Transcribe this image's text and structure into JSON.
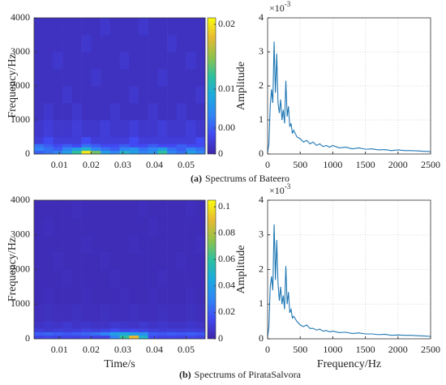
{
  "chart_data": [
    {
      "type": "heatmap",
      "caption_tag": "(a)",
      "caption": "Spectrums of Bateero",
      "ylabel": "Frequency/Hz",
      "xlim": [
        0.002,
        0.056
      ],
      "xticks": [
        0.01,
        0.02,
        0.03,
        0.04,
        0.05
      ],
      "ylim": [
        0,
        4000
      ],
      "yticks": [
        0,
        1000,
        2000,
        3000,
        4000
      ],
      "x_bins": [
        0.002,
        0.005,
        0.008,
        0.011,
        0.014,
        0.017,
        0.02,
        0.023,
        0.026,
        0.029,
        0.032,
        0.035,
        0.038,
        0.041,
        0.044,
        0.047,
        0.05,
        0.053,
        0.056
      ],
      "y_bins": [
        0,
        100,
        200,
        300,
        500,
        1000,
        1500,
        2000,
        2500,
        3000,
        3500,
        4000
      ],
      "z": [
        [
          0.004,
          0.005,
          0.006,
          0.008,
          0.012,
          0.02,
          0.014,
          0.008,
          0.006,
          0.01,
          0.008,
          0.006,
          0.007,
          0.012,
          0.006,
          0.005,
          0.008,
          0.006
        ],
        [
          0.006,
          0.005,
          0.004,
          0.006,
          0.008,
          0.01,
          0.006,
          0.005,
          0.004,
          0.006,
          0.007,
          0.005,
          0.006,
          0.008,
          0.005,
          0.004,
          0.006,
          0.005
        ],
        [
          0.005,
          0.004,
          0.003,
          0.004,
          0.003,
          0.005,
          0.004,
          0.003,
          0.003,
          0.004,
          0.003,
          0.003,
          0.004,
          0.003,
          0.003,
          0.004,
          0.003,
          0.003
        ],
        [
          0.002,
          0.003,
          0.002,
          0.002,
          0.002,
          0.003,
          0.002,
          0.002,
          0.002,
          0.002,
          0.003,
          0.002,
          0.002,
          0.002,
          0.002,
          0.002,
          0.002,
          0.003
        ],
        [
          0.0015,
          0.002,
          0.0015,
          0.0015,
          0.002,
          0.0015,
          0.0015,
          0.002,
          0.0015,
          0.0015,
          0.002,
          0.0015,
          0.0015,
          0.002,
          0.0015,
          0.0015,
          0.002,
          0.0015
        ],
        [
          0.001,
          0.0015,
          0.001,
          0.001,
          0.0015,
          0.001,
          0.001,
          0.001,
          0.0015,
          0.001,
          0.001,
          0.001,
          0.0015,
          0.001,
          0.001,
          0.0015,
          0.001,
          0.001
        ],
        [
          0.001,
          0.001,
          0.001,
          0.0015,
          0.001,
          0.001,
          0.001,
          0.001,
          0.001,
          0.001,
          0.0015,
          0.001,
          0.001,
          0.001,
          0.001,
          0.001,
          0.001,
          0.0015
        ],
        [
          0.001,
          0.001,
          0.001,
          0.001,
          0.001,
          0.001,
          0.0015,
          0.001,
          0.001,
          0.001,
          0.001,
          0.001,
          0.001,
          0.0015,
          0.001,
          0.001,
          0.001,
          0.001
        ],
        [
          0.001,
          0.001,
          0.0015,
          0.001,
          0.001,
          0.001,
          0.001,
          0.001,
          0.001,
          0.0015,
          0.001,
          0.001,
          0.001,
          0.001,
          0.001,
          0.001,
          0.0015,
          0.001
        ],
        [
          0.001,
          0.001,
          0.001,
          0.001,
          0.001,
          0.0015,
          0.001,
          0.001,
          0.001,
          0.001,
          0.001,
          0.001,
          0.001,
          0.001,
          0.0015,
          0.001,
          0.001,
          0.001
        ],
        [
          0.001,
          0.001,
          0.001,
          0.001,
          0.001,
          0.001,
          0.001,
          0.0015,
          0.001,
          0.001,
          0.001,
          0.0015,
          0.001,
          0.001,
          0.001,
          0.001,
          0.001,
          0.001
        ]
      ],
      "zlim": [
        0,
        0.021
      ],
      "zticks": [
        0,
        {
          "value": 0.004,
          "label": "0.00"
        },
        0.01,
        0.02
      ],
      "colorscale": [
        "#3e26a8",
        "#4149f2",
        "#2f85f5",
        "#1caadf",
        "#2dc19e",
        "#92c24a",
        "#e7ba32",
        "#f9fb0e"
      ]
    },
    {
      "type": "line",
      "ylabel": "Amplitude",
      "y_exponent_base": "×10",
      "y_exponent": "-3",
      "xlim": [
        0,
        2500
      ],
      "xticks": [
        0,
        500,
        1000,
        1500,
        2000,
        2500
      ],
      "ylim": [
        0,
        4
      ],
      "yticks": [
        0,
        1,
        2,
        3,
        4
      ],
      "grid": true,
      "color": "#1f77b4",
      "x": [
        0,
        20,
        40,
        60,
        80,
        100,
        110,
        120,
        140,
        160,
        180,
        200,
        220,
        240,
        260,
        280,
        300,
        320,
        340,
        360,
        380,
        400,
        450,
        500,
        550,
        600,
        650,
        700,
        750,
        800,
        850,
        900,
        950,
        1000,
        1100,
        1200,
        1300,
        1400,
        1500,
        1600,
        1700,
        1800,
        1900,
        2000,
        2100,
        2200,
        2300,
        2400,
        2500
      ],
      "values": [
        0.05,
        0.3,
        1.4,
        1.9,
        1.5,
        3.3,
        2.5,
        1.8,
        2.95,
        1.5,
        1.2,
        1.6,
        1.0,
        1.3,
        0.9,
        2.15,
        1.1,
        1.4,
        0.8,
        0.9,
        0.6,
        0.7,
        0.5,
        0.45,
        0.35,
        0.4,
        0.3,
        0.35,
        0.25,
        0.3,
        0.22,
        0.25,
        0.2,
        0.25,
        0.18,
        0.2,
        0.15,
        0.18,
        0.14,
        0.15,
        0.12,
        0.13,
        0.1,
        0.12,
        0.1,
        0.1,
        0.09,
        0.08,
        0.07
      ]
    },
    {
      "type": "heatmap",
      "caption_tag": "(b)",
      "caption": "Spectrums of PirataSalvora",
      "ylabel": "Frequency/Hz",
      "xlabel": "Time/s",
      "xlim": [
        0.002,
        0.056
      ],
      "xticks": [
        0.01,
        0.02,
        0.03,
        0.04,
        0.05
      ],
      "ylim": [
        0,
        4000
      ],
      "yticks": [
        0,
        1000,
        2000,
        3000,
        4000
      ],
      "x_bins": [
        0.002,
        0.005,
        0.008,
        0.011,
        0.014,
        0.017,
        0.02,
        0.023,
        0.026,
        0.029,
        0.032,
        0.035,
        0.038,
        0.041,
        0.044,
        0.047,
        0.05,
        0.053,
        0.056
      ],
      "y_bins": [
        0,
        100,
        200,
        300,
        500,
        1000,
        1500,
        2000,
        2500,
        3000,
        3500,
        4000
      ],
      "z": [
        [
          0.012,
          0.014,
          0.012,
          0.013,
          0.012,
          0.014,
          0.012,
          0.013,
          0.03,
          0.06,
          0.09,
          0.05,
          0.015,
          0.012,
          0.013,
          0.012,
          0.014,
          0.012
        ],
        [
          0.02,
          0.022,
          0.02,
          0.018,
          0.02,
          0.022,
          0.025,
          0.03,
          0.04,
          0.045,
          0.04,
          0.035,
          0.02,
          0.018,
          0.02,
          0.018,
          0.02,
          0.018
        ],
        [
          0.01,
          0.008,
          0.01,
          0.009,
          0.01,
          0.012,
          0.01,
          0.012,
          0.015,
          0.012,
          0.014,
          0.012,
          0.01,
          0.009,
          0.01,
          0.009,
          0.01,
          0.009
        ],
        [
          0.006,
          0.007,
          0.006,
          0.008,
          0.006,
          0.007,
          0.006,
          0.006,
          0.008,
          0.007,
          0.006,
          0.008,
          0.006,
          0.007,
          0.006,
          0.006,
          0.007,
          0.006
        ],
        [
          0.004,
          0.005,
          0.004,
          0.004,
          0.005,
          0.004,
          0.004,
          0.005,
          0.004,
          0.004,
          0.005,
          0.004,
          0.004,
          0.005,
          0.004,
          0.004,
          0.005,
          0.004
        ],
        [
          0.003,
          0.004,
          0.003,
          0.003,
          0.003,
          0.004,
          0.003,
          0.003,
          0.003,
          0.004,
          0.003,
          0.003,
          0.004,
          0.003,
          0.003,
          0.003,
          0.004,
          0.003
        ],
        [
          0.003,
          0.003,
          0.003,
          0.004,
          0.003,
          0.003,
          0.003,
          0.003,
          0.004,
          0.003,
          0.003,
          0.003,
          0.003,
          0.004,
          0.003,
          0.003,
          0.003,
          0.003
        ],
        [
          0.003,
          0.003,
          0.004,
          0.003,
          0.003,
          0.003,
          0.003,
          0.004,
          0.003,
          0.003,
          0.003,
          0.003,
          0.003,
          0.003,
          0.003,
          0.004,
          0.003,
          0.003
        ],
        [
          0.003,
          0.003,
          0.003,
          0.003,
          0.003,
          0.004,
          0.003,
          0.003,
          0.003,
          0.003,
          0.004,
          0.003,
          0.003,
          0.003,
          0.003,
          0.003,
          0.003,
          0.004
        ],
        [
          0.003,
          0.004,
          0.003,
          0.003,
          0.003,
          0.003,
          0.003,
          0.003,
          0.003,
          0.003,
          0.003,
          0.003,
          0.004,
          0.003,
          0.003,
          0.003,
          0.003,
          0.003
        ],
        [
          0.003,
          0.003,
          0.003,
          0.003,
          0.004,
          0.003,
          0.003,
          0.003,
          0.003,
          0.003,
          0.003,
          0.004,
          0.003,
          0.003,
          0.003,
          0.003,
          0.004,
          0.003
        ]
      ],
      "zlim": [
        0,
        0.105
      ],
      "zticks": [
        0,
        0.02,
        0.04,
        0.06,
        0.08,
        0.1
      ],
      "colorscale": [
        "#3e26a8",
        "#4149f2",
        "#2f85f5",
        "#1caadf",
        "#2dc19e",
        "#92c24a",
        "#e7ba32",
        "#f9fb0e"
      ]
    },
    {
      "type": "line",
      "ylabel": "Amplitude",
      "xlabel": "Frequency/Hz",
      "y_exponent_base": "×10",
      "y_exponent": "-3",
      "xlim": [
        0,
        2500
      ],
      "xticks": [
        0,
        500,
        1000,
        1500,
        2000,
        2500
      ],
      "ylim": [
        0,
        4
      ],
      "yticks": [
        0,
        1,
        2,
        3,
        4
      ],
      "grid": true,
      "color": "#1f77b4",
      "x": [
        0,
        20,
        40,
        60,
        80,
        100,
        110,
        120,
        140,
        160,
        180,
        200,
        220,
        240,
        260,
        280,
        300,
        320,
        340,
        360,
        380,
        400,
        450,
        500,
        550,
        600,
        650,
        700,
        750,
        800,
        850,
        900,
        950,
        1000,
        1100,
        1200,
        1300,
        1400,
        1500,
        1600,
        1700,
        1800,
        1900,
        2000,
        2100,
        2200,
        2300,
        2400,
        2500
      ],
      "values": [
        0.05,
        0.35,
        1.5,
        1.8,
        1.4,
        3.3,
        2.6,
        1.7,
        2.85,
        1.6,
        1.1,
        1.5,
        1.0,
        1.25,
        0.85,
        2.1,
        1.0,
        1.35,
        0.75,
        0.85,
        0.6,
        0.65,
        0.5,
        0.4,
        0.35,
        0.4,
        0.3,
        0.3,
        0.25,
        0.28,
        0.22,
        0.24,
        0.2,
        0.22,
        0.18,
        0.19,
        0.15,
        0.17,
        0.14,
        0.14,
        0.12,
        0.13,
        0.1,
        0.11,
        0.1,
        0.1,
        0.09,
        0.08,
        0.07
      ]
    }
  ]
}
